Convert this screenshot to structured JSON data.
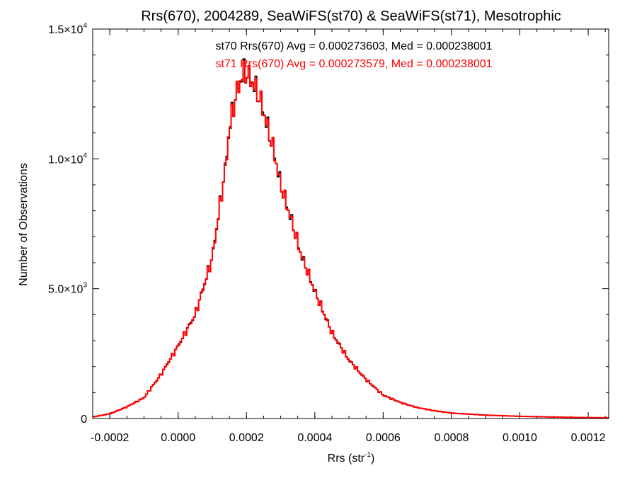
{
  "chart_data": {
    "type": "histogram-step",
    "title": "Rrs(670), 2004289, SeaWiFS(st70) & SeaWiFS(st71), Mesotrophic",
    "xlabel": "Rrs (str",
    "xlabel_sup": "-1",
    "xlabel_close": ")",
    "ylabel": "Number of Observations",
    "xlim": [
      -0.00025,
      0.00126
    ],
    "ylim": [
      0,
      15000
    ],
    "x_ticks": [
      {
        "value": -0.0002,
        "label": "-0.0002"
      },
      {
        "value": 0.0,
        "label": "0.0000"
      },
      {
        "value": 0.0002,
        "label": "0.0002"
      },
      {
        "value": 0.0004,
        "label": "0.0004"
      },
      {
        "value": 0.0006,
        "label": "0.0006"
      },
      {
        "value": 0.0008,
        "label": "0.0008"
      },
      {
        "value": 0.001,
        "label": "0.0010"
      },
      {
        "value": 0.0012,
        "label": "0.0012"
      }
    ],
    "y_ticks": [
      {
        "value": 0,
        "mant": "0",
        "exp": ""
      },
      {
        "value": 5000,
        "mant": "5.0×10",
        "exp": "3"
      },
      {
        "value": 10000,
        "mant": "1.0×10",
        "exp": "4"
      },
      {
        "value": 15000,
        "mant": "1.5×10",
        "exp": "4"
      }
    ],
    "legend_lines": [
      {
        "text": "st70 Rrs(670) Avg = 0.000273603, Med = 0.000238001",
        "color": "#000000"
      },
      {
        "text": "st71 Rrs(670) Avg = 0.000273579, Med = 0.000238001",
        "color": "#ff0000"
      }
    ],
    "legend_placement": "top-center",
    "grid": false,
    "bin_width": 5e-06,
    "series": [
      {
        "name": "st70",
        "color": "#000000",
        "bins_x": [
          -0.00025,
          -0.0002,
          -0.00015,
          -0.0001,
          -5e-05,
          0.0,
          5e-05,
          0.0001,
          0.00012,
          0.00014,
          0.00015,
          0.00017,
          0.00019,
          0.0002,
          0.00022,
          0.00024,
          0.00026,
          0.00028,
          0.0003,
          0.00033,
          0.00036,
          0.0004,
          0.00045,
          0.0005,
          0.00055,
          0.0006,
          0.00065,
          0.0007,
          0.00075,
          0.0008,
          0.0009,
          0.001,
          0.0011,
          0.0012,
          0.00126
        ],
        "counts": [
          60,
          180,
          450,
          800,
          1700,
          2800,
          4000,
          6200,
          8000,
          9800,
          11200,
          12500,
          13300,
          13300,
          12900,
          12300,
          11300,
          10300,
          9000,
          7700,
          6300,
          4900,
          3300,
          2250,
          1500,
          900,
          620,
          420,
          300,
          210,
          130,
          85,
          55,
          35,
          30
        ]
      },
      {
        "name": "st71",
        "color": "#ff0000",
        "bins_x": [
          -0.00025,
          -0.0002,
          -0.00015,
          -0.0001,
          -5e-05,
          0.0,
          5e-05,
          0.0001,
          0.00012,
          0.00014,
          0.00015,
          0.00017,
          0.00019,
          0.0002,
          0.00022,
          0.00024,
          0.00026,
          0.00028,
          0.0003,
          0.00033,
          0.00036,
          0.0004,
          0.00045,
          0.0005,
          0.00055,
          0.0006,
          0.00065,
          0.0007,
          0.00075,
          0.0008,
          0.0009,
          0.001,
          0.0011,
          0.0012,
          0.00126
        ],
        "counts": [
          60,
          180,
          450,
          800,
          1700,
          2800,
          4000,
          6200,
          8000,
          9800,
          11200,
          12500,
          13300,
          13300,
          12900,
          12300,
          11300,
          10300,
          9000,
          7700,
          6300,
          4900,
          3300,
          2250,
          1500,
          900,
          620,
          420,
          300,
          210,
          130,
          85,
          55,
          35,
          30
        ]
      }
    ]
  }
}
